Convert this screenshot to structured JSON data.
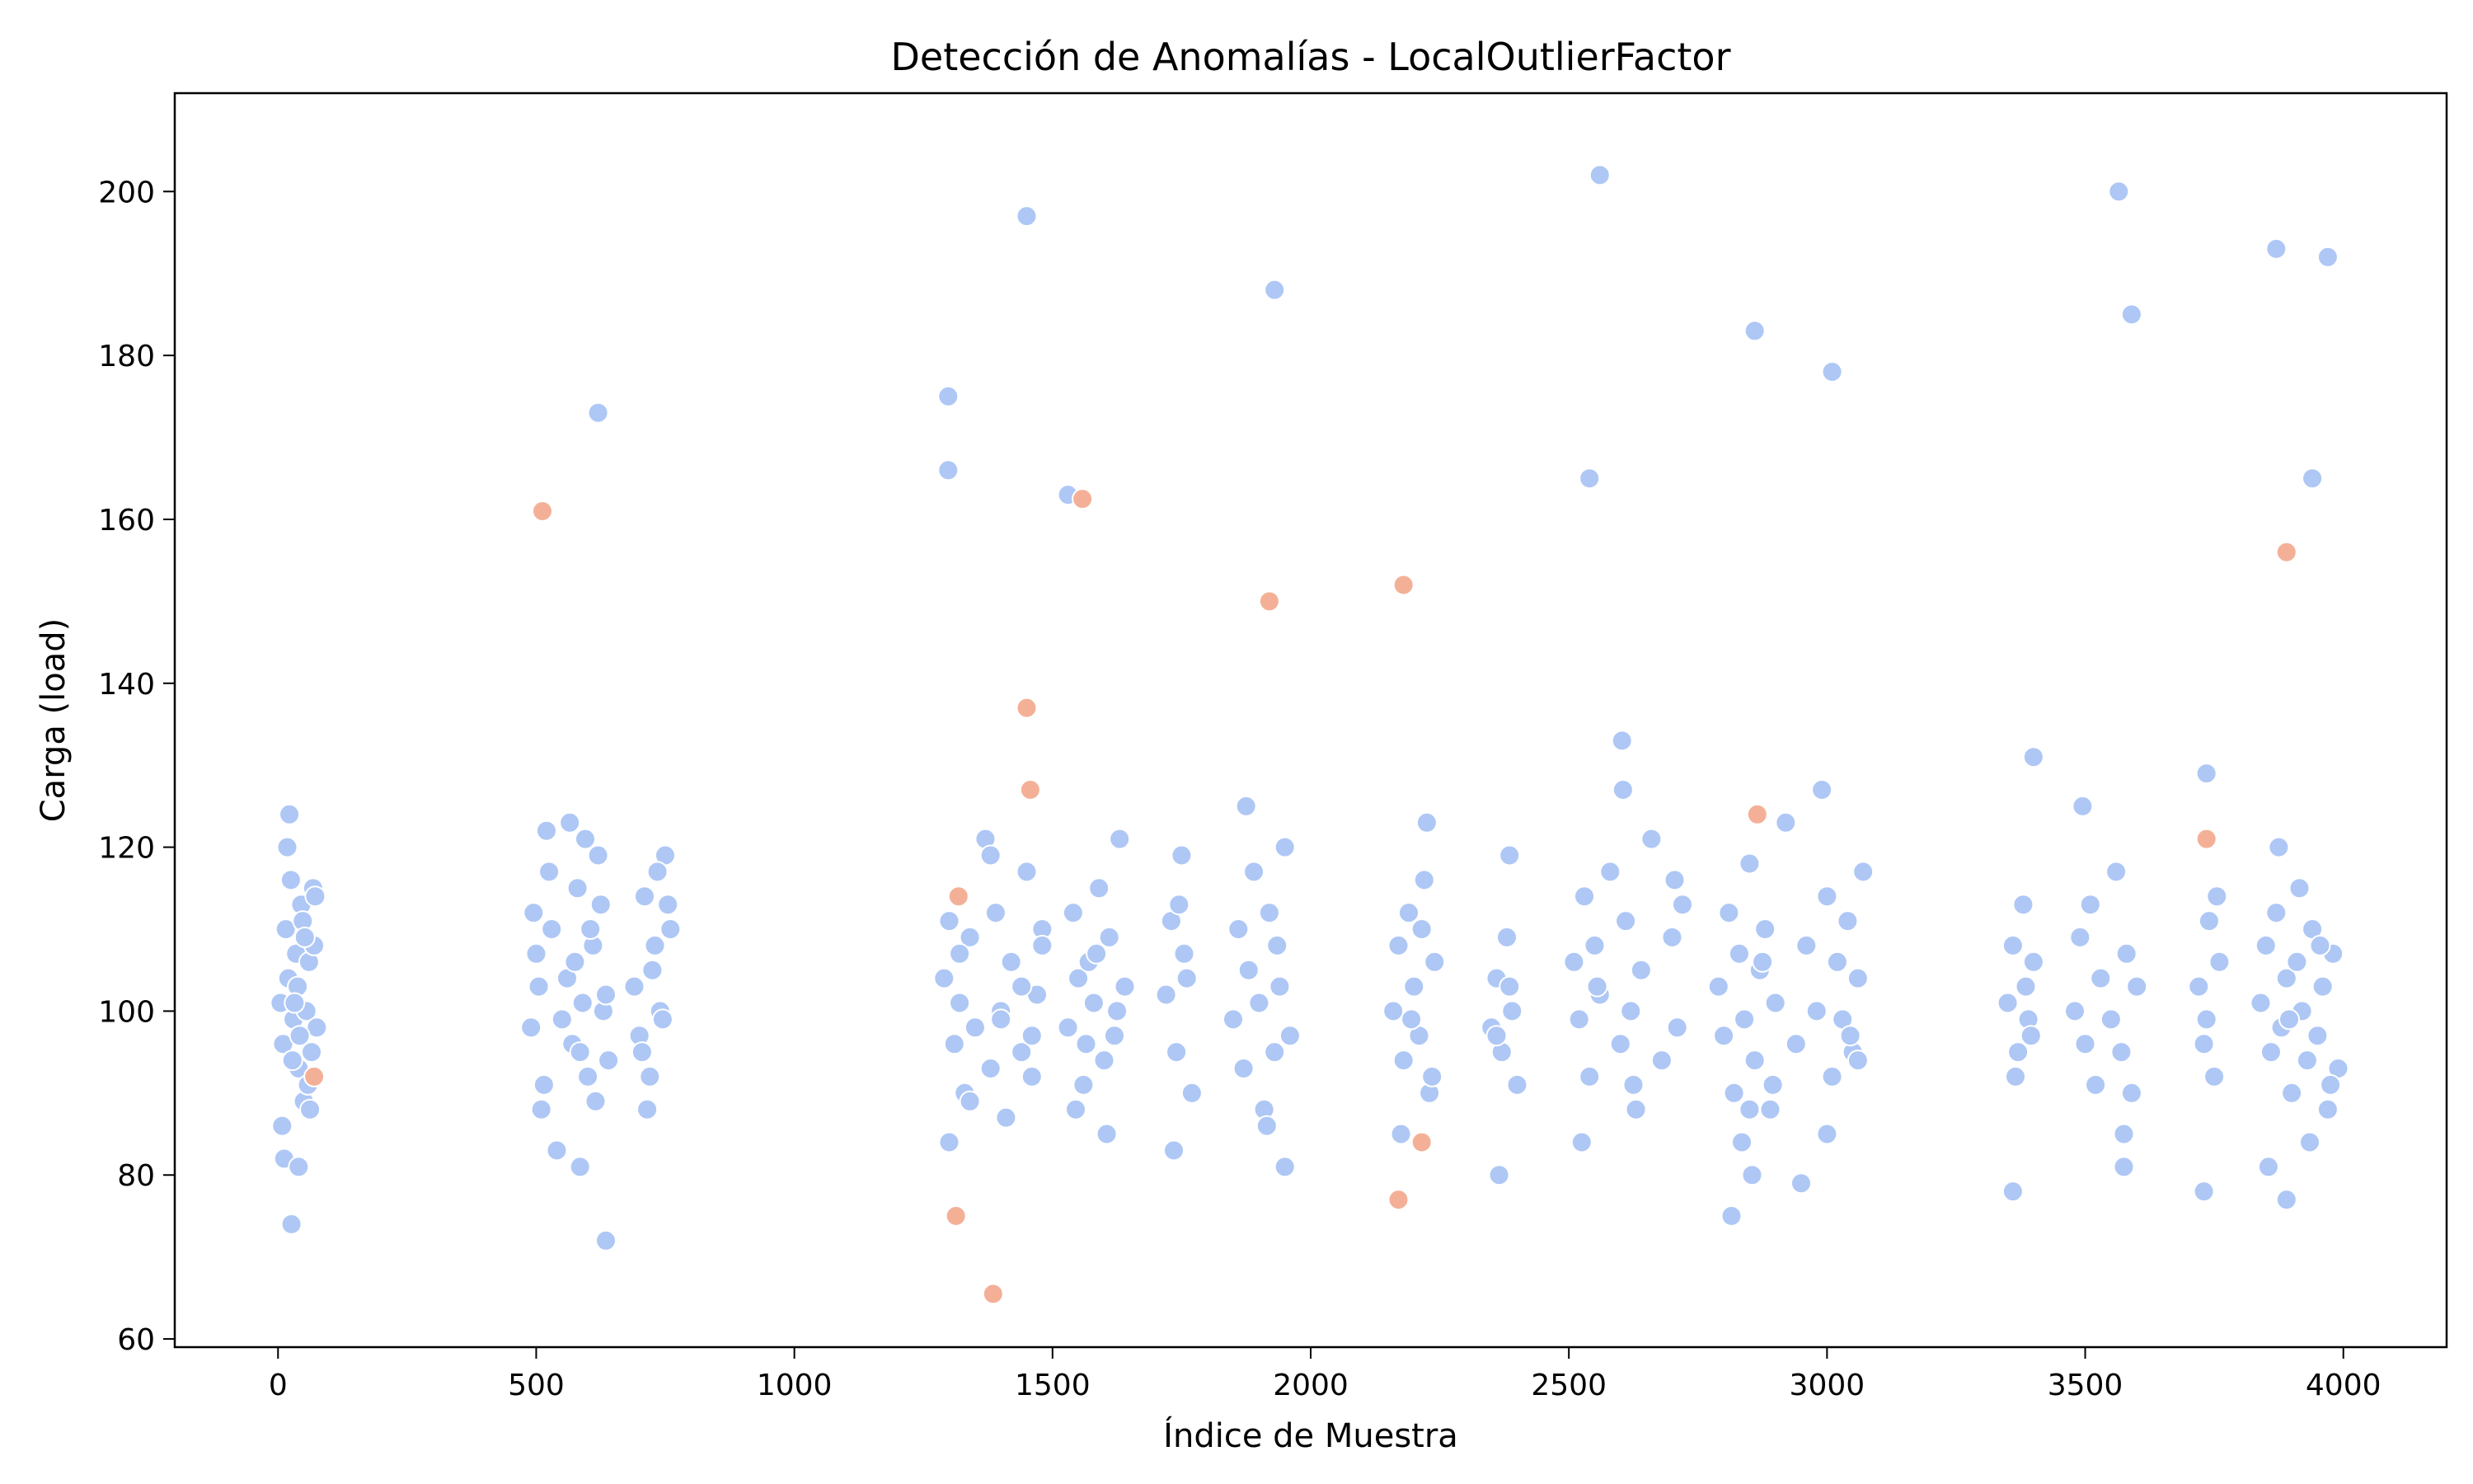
{
  "chart_data": {
    "type": "scatter",
    "title": "Detección de Anomalías - LocalOutlierFactor",
    "xlabel": "Índice de Muestra",
    "ylabel": "Carga (load)",
    "xlim": [
      -200,
      4200
    ],
    "ylim": [
      59,
      212
    ],
    "xticks": [
      0,
      500,
      1000,
      1500,
      2000,
      2500,
      3000,
      3500,
      4000
    ],
    "yticks": [
      60,
      80,
      100,
      120,
      140,
      160,
      180,
      200
    ],
    "grid": false,
    "legend": "none",
    "colors": {
      "normal": "#aec7f5",
      "anomaly": "#f4b097"
    },
    "series": [
      {
        "key": "normal",
        "x": [
          5,
          10,
          15,
          20,
          25,
          30,
          35,
          40,
          45,
          50,
          55,
          60,
          65,
          70,
          75,
          8,
          18,
          28,
          38,
          48,
          58,
          68,
          12,
          22,
          32,
          42,
          52,
          62,
          72,
          26,
          40,
          490,
          500,
          510,
          520,
          530,
          540,
          560,
          570,
          580,
          590,
          600,
          610,
          620,
          630,
          640,
          495,
          505,
          515,
          525,
          550,
          565,
          575,
          585,
          595,
          605,
          615,
          625,
          635,
          585,
          620,
          635,
          690,
          700,
          710,
          720,
          730,
          740,
          750,
          760,
          705,
          715,
          725,
          735,
          745,
          755,
          1290,
          1300,
          1310,
          1320,
          1330,
          1340,
          1350,
          1370,
          1380,
          1390,
          1400,
          1410,
          1420,
          1440,
          1450,
          1460,
          1470,
          1480,
          1300,
          1320,
          1340,
          1380,
          1400,
          1440,
          1460,
          1480,
          1298,
          1298,
          1450,
          1530,
          1530,
          1540,
          1550,
          1560,
          1570,
          1580,
          1590,
          1600,
          1610,
          1620,
          1630,
          1640,
          1545,
          1565,
          1585,
          1605,
          1625,
          1720,
          1730,
          1740,
          1750,
          1760,
          1770,
          1735,
          1755,
          1745,
          1850,
          1860,
          1870,
          1880,
          1890,
          1900,
          1910,
          1920,
          1930,
          1940,
          1950,
          1960,
          1875,
          1915,
          1935,
          1950,
          1930,
          2160,
          2170,
          2180,
          2190,
          2200,
          2210,
          2220,
          2230,
          2240,
          2175,
          2195,
          2215,
          2235,
          2225,
          2350,
          2360,
          2370,
          2380,
          2390,
          2400,
          2365,
          2385,
          2360,
          2385,
          2510,
          2520,
          2530,
          2540,
          2550,
          2560,
          2580,
          2600,
          2610,
          2620,
          2630,
          2640,
          2660,
          2680,
          2700,
          2710,
          2720,
          2525,
          2555,
          2605,
          2625,
          2705,
          2540,
          2560,
          2603,
          2790,
          2800,
          2810,
          2820,
          2830,
          2840,
          2850,
          2860,
          2870,
          2880,
          2890,
          2900,
          2920,
          2940,
          2960,
          2980,
          3000,
          3010,
          3020,
          3030,
          3040,
          3050,
          3060,
          3070,
          2815,
          2835,
          2855,
          2875,
          2895,
          2950,
          2990,
          3010,
          3045,
          2860,
          2850,
          3000,
          3060,
          3350,
          3360,
          3370,
          3380,
          3390,
          3400,
          3365,
          3385,
          3395,
          3360,
          3400,
          3480,
          3490,
          3500,
          3510,
          3520,
          3530,
          3550,
          3560,
          3570,
          3580,
          3590,
          3600,
          3495,
          3575,
          3575,
          3565,
          3590,
          3720,
          3730,
          3740,
          3750,
          3760,
          3735,
          3755,
          3730,
          3735,
          3840,
          3850,
          3860,
          3870,
          3880,
          3890,
          3900,
          3910,
          3920,
          3930,
          3940,
          3950,
          3960,
          3970,
          3980,
          3990,
          3855,
          3875,
          3895,
          3915,
          3935,
          3955,
          3975,
          3870,
          3890,
          3940,
          3970
        ],
        "y": [
          101,
          96,
          110,
          104,
          116,
          99,
          107,
          93,
          113,
          89,
          100,
          106,
          95,
          108,
          98,
          86,
          120,
          94,
          103,
          111,
          91,
          115,
          82,
          124,
          101,
          97,
          109,
          88,
          114,
          74,
          81,
          98,
          107,
          88,
          122,
          110,
          83,
          104,
          96,
          115,
          101,
          92,
          108,
          119,
          100,
          94,
          112,
          103,
          91,
          117,
          99,
          123,
          106,
          95,
          121,
          110,
          89,
          113,
          102,
          81,
          173,
          72,
          103,
          97,
          114,
          92,
          108,
          100,
          119,
          110,
          95,
          88,
          105,
          117,
          99,
          113,
          104,
          111,
          96,
          101,
          90,
          109,
          98,
          121,
          93,
          112,
          100,
          87,
          106,
          95,
          117,
          92,
          102,
          110,
          84,
          107,
          89,
          119,
          99,
          103,
          97,
          108,
          175,
          166,
          197,
          163,
          98,
          112,
          104,
          91,
          106,
          101,
          115,
          94,
          109,
          97,
          121,
          103,
          88,
          96,
          107,
          85,
          100,
          102,
          111,
          95,
          119,
          104,
          90,
          83,
          107,
          113,
          99,
          110,
          93,
          105,
          117,
          101,
          88,
          112,
          95,
          103,
          120,
          97,
          125,
          86,
          108,
          81,
          188,
          100,
          108,
          94,
          112,
          103,
          97,
          116,
          90,
          106,
          85,
          99,
          110,
          92,
          123,
          98,
          104,
          95,
          109,
          100,
          91,
          80,
          103,
          97,
          119,
          106,
          99,
          114,
          92,
          108,
          102,
          117,
          96,
          111,
          100,
          88,
          105,
          121,
          94,
          109,
          98,
          113,
          84,
          103,
          127,
          91,
          116,
          165,
          202,
          133,
          103,
          97,
          112,
          90,
          107,
          99,
          118,
          94,
          105,
          110,
          88,
          101,
          123,
          96,
          108,
          100,
          114,
          92,
          106,
          99,
          111,
          95,
          104,
          117,
          75,
          84,
          80,
          106,
          91,
          79,
          127,
          178,
          97,
          183,
          88,
          85,
          94,
          101,
          108,
          95,
          113,
          99,
          106,
          92,
          103,
          97,
          78,
          131,
          100,
          109,
          96,
          113,
          91,
          104,
          99,
          117,
          95,
          107,
          90,
          103,
          125,
          85,
          81,
          200,
          185,
          103,
          96,
          111,
          92,
          106,
          99,
          114,
          78,
          129,
          101,
          108,
          95,
          112,
          98,
          104,
          90,
          106,
          100,
          94,
          110,
          97,
          103,
          88,
          107,
          93,
          81,
          120,
          99,
          115,
          84,
          108,
          91,
          193,
          77,
          165,
          192
        ]
      },
      {
        "key": "anomaly",
        "x": [
          70,
          512,
          1318,
          1313,
          1450,
          1457,
          1558,
          1920,
          2170,
          2180,
          2215,
          2865,
          3735,
          3890,
          1385
        ],
        "y": [
          92,
          161,
          114,
          75,
          137,
          127,
          162.5,
          150,
          77,
          152,
          84,
          124,
          121,
          156,
          65.5
        ]
      }
    ]
  }
}
